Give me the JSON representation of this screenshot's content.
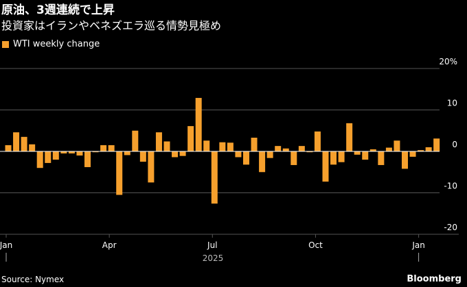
{
  "header": {
    "title": "原油、3週連続で上昇",
    "subtitle": "投資家はイランやベネズエラ巡る情勢見極め"
  },
  "footer": {
    "source": "Source: Nymex",
    "brand": "Bloomberg"
  },
  "colors": {
    "bar": "#f6a02d",
    "grid": "#555555",
    "zero_line": "#ffffff",
    "background": "#000000"
  },
  "chart_data": {
    "type": "bar",
    "title": "",
    "legend": [
      {
        "name": "WTI weekly change",
        "color": "#f6a02d"
      }
    ],
    "legend_position": "top-left",
    "xlabel": "",
    "ylabel": "",
    "ylim": [
      -20,
      20
    ],
    "y_ticks": [
      {
        "value": 20,
        "label": "20%"
      },
      {
        "value": 10,
        "label": "10"
      },
      {
        "value": 0,
        "label": "0"
      },
      {
        "value": -10,
        "label": "-10"
      },
      {
        "value": -20,
        "label": "-20"
      }
    ],
    "x_ticks": [
      {
        "index": 0,
        "label": "Jan"
      },
      {
        "index": 13,
        "label": "Apr"
      },
      {
        "index": 26,
        "label": "Jul"
      },
      {
        "index": 39,
        "label": "Oct"
      },
      {
        "index": 52,
        "label": "Jan"
      }
    ],
    "year_label": "2025",
    "grid": true,
    "series": [
      {
        "name": "WTI weekly change",
        "values": [
          1.5,
          4.6,
          3.5,
          1.7,
          -4.0,
          -2.8,
          -2.0,
          -0.5,
          -0.5,
          -1.0,
          -3.8,
          -0.2,
          1.5,
          1.5,
          -10.5,
          -0.9,
          5.0,
          -2.5,
          -7.5,
          4.6,
          2.4,
          -1.4,
          -1.1,
          6.1,
          12.9,
          2.6,
          -12.6,
          2.2,
          2.1,
          -1.4,
          -3.2,
          3.3,
          -5.0,
          -1.6,
          1.3,
          0.7,
          -3.3,
          1.3,
          -0.2,
          4.8,
          -7.3,
          -3.2,
          -2.6,
          6.8,
          -0.8,
          -2.0,
          0.5,
          -3.3,
          0.9,
          2.6,
          -4.2,
          -1.3,
          0.3,
          1.0,
          3.1
        ]
      }
    ]
  }
}
